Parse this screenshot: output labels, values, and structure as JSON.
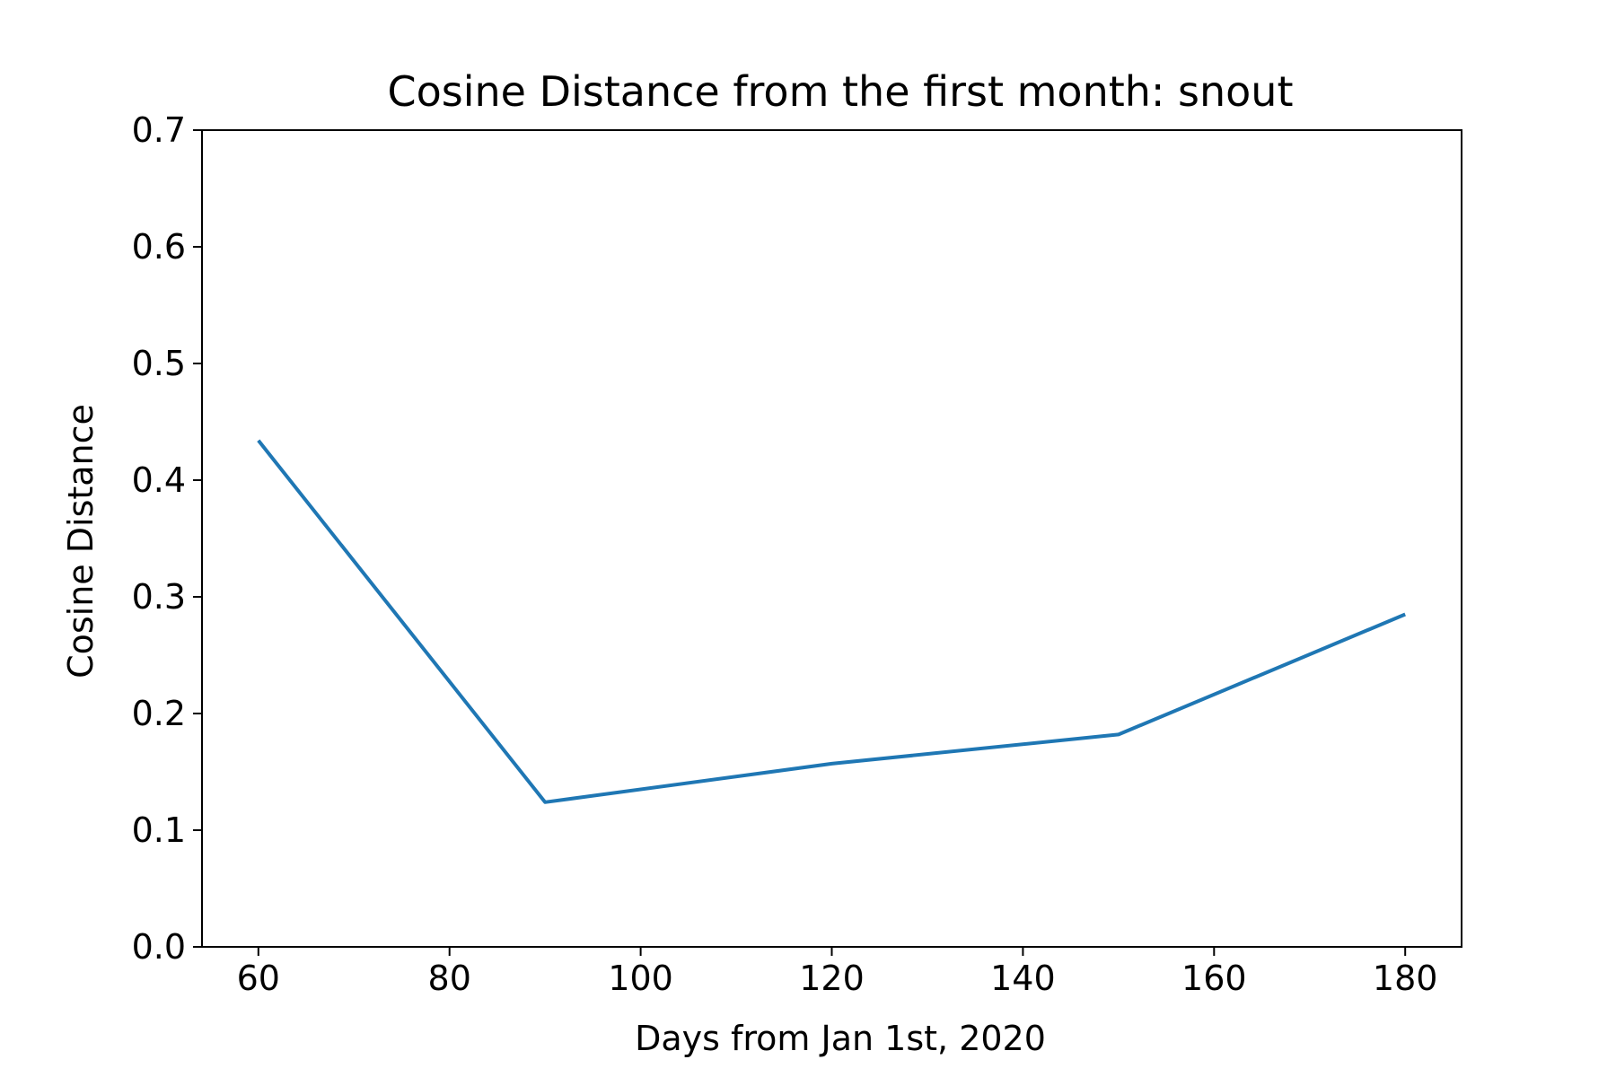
{
  "chart_data": {
    "type": "line",
    "title": "Cosine Distance from the first month: snout",
    "xlabel": "Days from Jan 1st, 2020",
    "ylabel": "Cosine Distance",
    "x": [
      60,
      90,
      120,
      150,
      180
    ],
    "series": [
      {
        "values": [
          0.434,
          0.124,
          0.157,
          0.182,
          0.285
        ],
        "color": "#1f77b4"
      }
    ],
    "xlim": [
      54.1,
      185.9
    ],
    "ylim": [
      0,
      0.7
    ],
    "xticks": [
      60,
      80,
      100,
      120,
      140,
      160,
      180
    ],
    "xtick_labels": [
      "60",
      "80",
      "100",
      "120",
      "140",
      "160",
      "180"
    ],
    "yticks": [
      0,
      0.1,
      0.2,
      0.3,
      0.4,
      0.5,
      0.6,
      0.7
    ],
    "ytick_labels": [
      "0.0",
      "0.1",
      "0.2",
      "0.3",
      "0.4",
      "0.5",
      "0.6",
      "0.7"
    ],
    "grid": false,
    "legend": "none"
  }
}
